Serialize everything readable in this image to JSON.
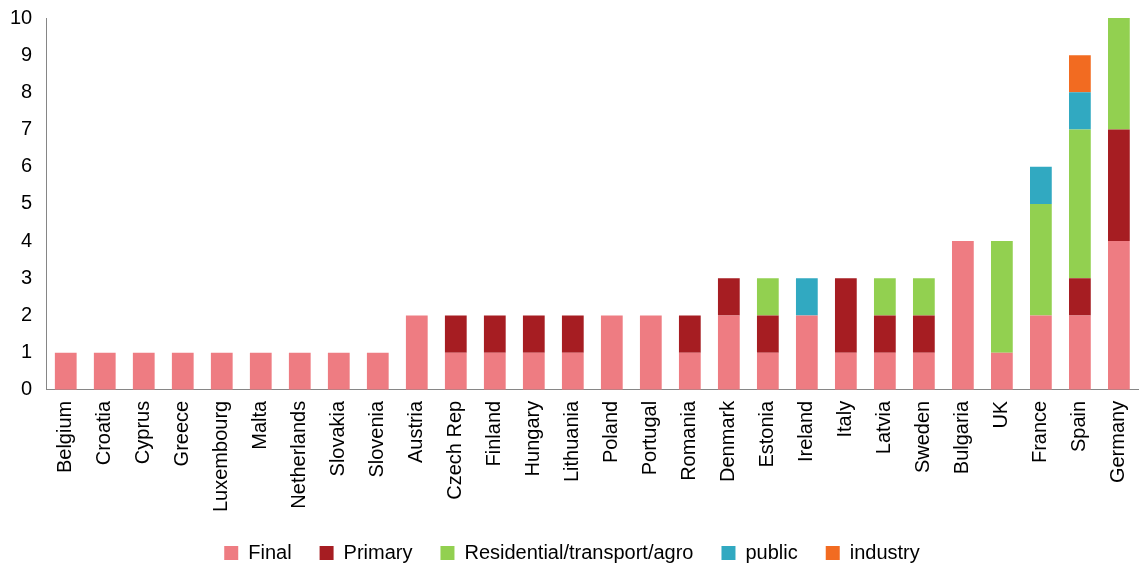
{
  "chart_data": {
    "type": "bar",
    "stacked": true,
    "categories": [
      "Belgium",
      "Croatia",
      "Cyprus",
      "Greece",
      "Luxembourg",
      "Malta",
      "Netherlands",
      "Slovakia",
      "Slovenia",
      "Austria",
      "Czech Rep",
      "Finland",
      "Hungary",
      "Lithuania",
      "Poland",
      "Portugal",
      "Romania",
      "Denmark",
      "Estonia",
      "Ireland",
      "Italy",
      "Latvia",
      "Sweden",
      "Bulgaria",
      "UK",
      "France",
      "Spain",
      "Germany"
    ],
    "series": [
      {
        "name": "Final",
        "color": "#ee7c82",
        "values": [
          1,
          1,
          1,
          1,
          1,
          1,
          1,
          1,
          1,
          2,
          1,
          1,
          1,
          1,
          2,
          2,
          1,
          2,
          1,
          2,
          1,
          1,
          1,
          4,
          1,
          2,
          2,
          4
        ]
      },
      {
        "name": "Primary",
        "color": "#a61d22",
        "values": [
          0,
          0,
          0,
          0,
          0,
          0,
          0,
          0,
          0,
          0,
          1,
          1,
          1,
          1,
          0,
          0,
          1,
          1,
          1,
          0,
          2,
          1,
          1,
          0,
          0,
          0,
          1,
          3
        ]
      },
      {
        "name": "Residential/transport/agro",
        "color": "#92d050",
        "values": [
          0,
          0,
          0,
          0,
          0,
          0,
          0,
          0,
          0,
          0,
          0,
          0,
          0,
          0,
          0,
          0,
          0,
          0,
          1,
          0,
          0,
          1,
          1,
          0,
          3,
          3,
          4,
          3
        ]
      },
      {
        "name": "public",
        "color": "#31a9c1",
        "values": [
          0,
          0,
          0,
          0,
          0,
          0,
          0,
          0,
          0,
          0,
          0,
          0,
          0,
          0,
          0,
          0,
          0,
          0,
          0,
          1,
          0,
          0,
          0,
          0,
          0,
          1,
          1,
          0
        ]
      },
      {
        "name": "industry",
        "color": "#f26b21",
        "values": [
          0,
          0,
          0,
          0,
          0,
          0,
          0,
          0,
          0,
          0,
          0,
          0,
          0,
          0,
          0,
          0,
          0,
          0,
          0,
          0,
          0,
          0,
          0,
          0,
          0,
          0,
          1,
          0
        ]
      }
    ],
    "ylim": [
      0,
      10
    ],
    "yticks": [
      0,
      1,
      2,
      3,
      4,
      5,
      6,
      7,
      8,
      9,
      10
    ],
    "grid": false,
    "legend": "bottom"
  }
}
